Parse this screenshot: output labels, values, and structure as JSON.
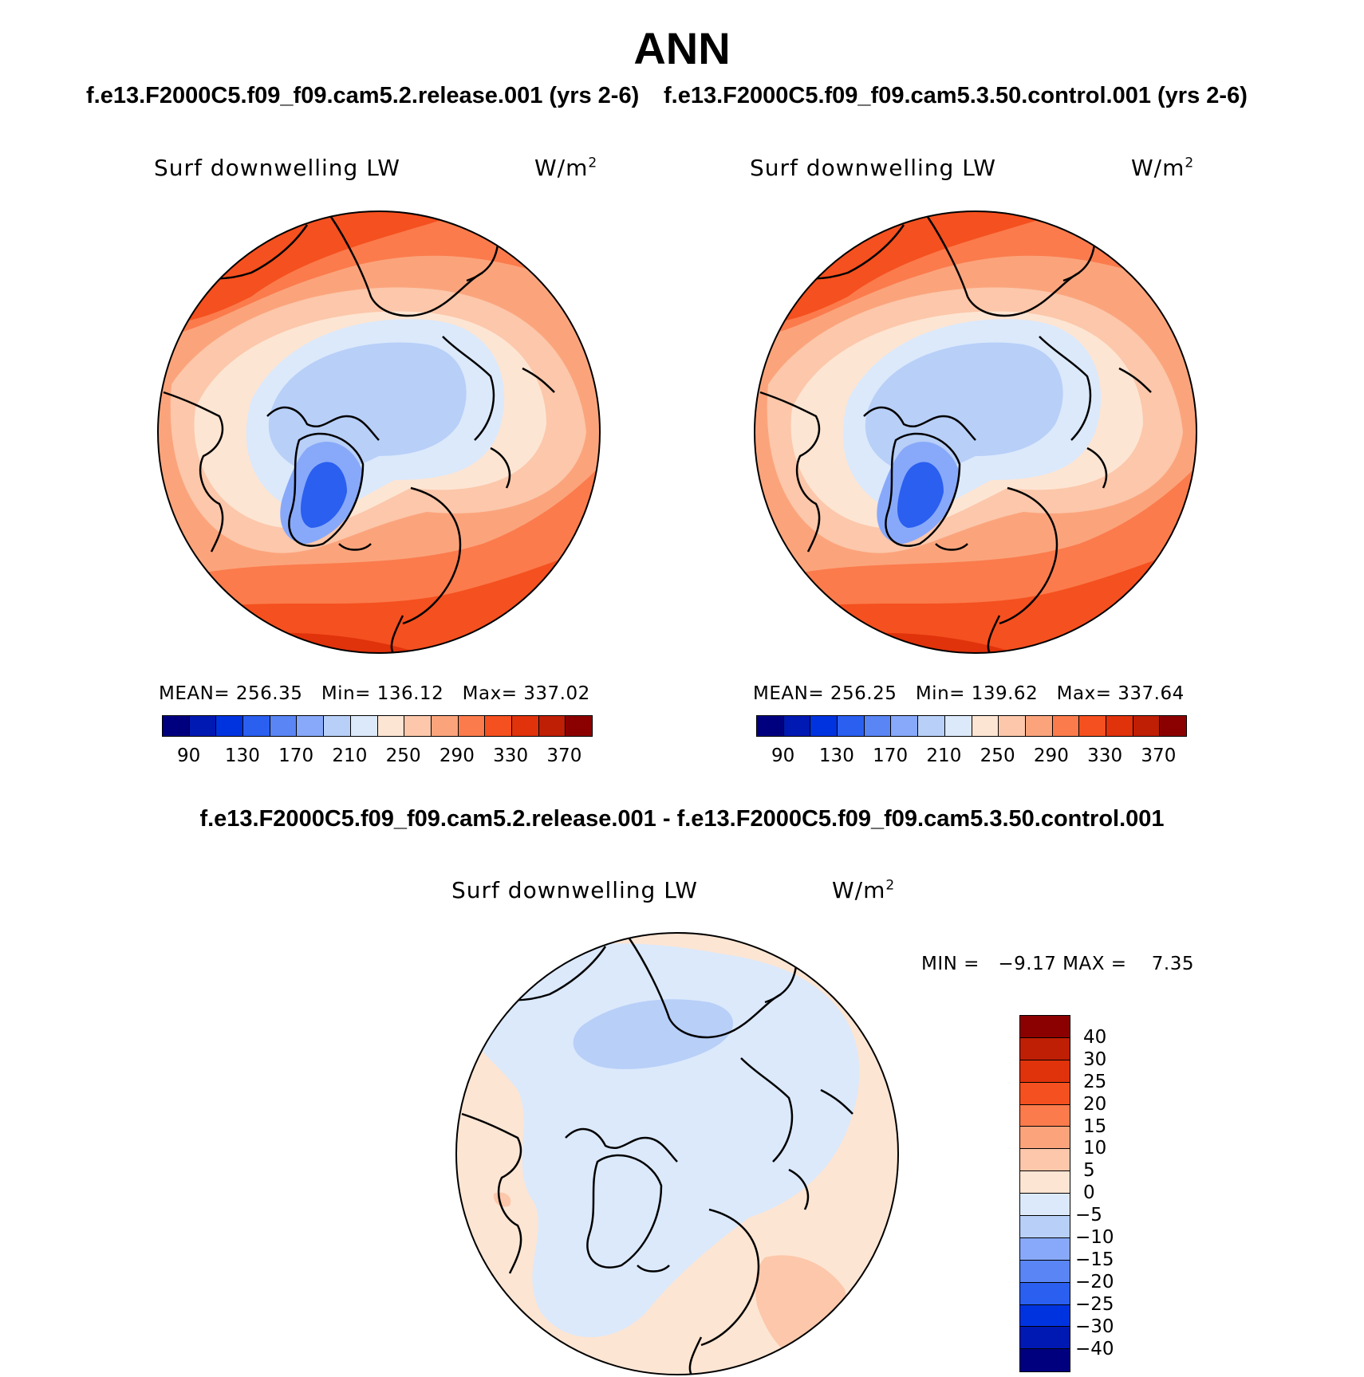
{
  "title": "ANN",
  "subtitle_left": "f.e13.F2000C5.f09_f09.cam5.2.release.001 (yrs 2-6)",
  "subtitle_right": "f.e13.F2000C5.f09_f09.cam5.3.50.control.001 (yrs 2-6)",
  "diff_title": "f.e13.F2000C5.f09_f09.cam5.2.release.001 - f.e13.F2000C5.f09_f09.cam5.3.50.control.001",
  "maps": [
    {
      "variable": "Surf downwelling LW",
      "units": "W/m",
      "units_sup": "2",
      "mean_label": "MEAN= 256.35",
      "min_label": "Min= 136.12",
      "max_label": "Max= 337.02"
    },
    {
      "variable": "Surf downwelling LW",
      "units": "W/m",
      "units_sup": "2",
      "mean_label": "MEAN= 256.25",
      "min_label": "Min= 139.62",
      "max_label": "Max= 337.64"
    },
    {
      "variable": "Surf downwelling LW",
      "units": "W/m",
      "units_sup": "2",
      "minmax_label": "MIN =   −9.17 MAX =    7.35"
    }
  ],
  "colorbar_abs": {
    "labels": [
      "90",
      "130",
      "170",
      "210",
      "250",
      "290",
      "330",
      "370"
    ],
    "colors": [
      "#00007f",
      "#0019b2",
      "#0033e0",
      "#2a5ff0",
      "#5985f5",
      "#88a9fa",
      "#b8cff8",
      "#dbe9fb",
      "#fde5d3",
      "#fcc7aa",
      "#fba47c",
      "#fb7b4c",
      "#f5501f",
      "#e0320b",
      "#bf1f05",
      "#8b0000"
    ]
  },
  "colorbar_diff": {
    "labels": [
      "40",
      "30",
      "25",
      "20",
      "15",
      "10",
      "5",
      "0",
      "−5",
      "−10",
      "−15",
      "−20",
      "−25",
      "−30",
      "−40"
    ],
    "colors": [
      "#8b0000",
      "#bf1f05",
      "#e0320b",
      "#f5501f",
      "#fb7b4c",
      "#fba47c",
      "#fcc7aa",
      "#fde5d3",
      "#dbe9fb",
      "#b8cff8",
      "#88a9fa",
      "#5985f5",
      "#2a5ff0",
      "#0033e0",
      "#0019b2",
      "#00007f"
    ]
  }
}
